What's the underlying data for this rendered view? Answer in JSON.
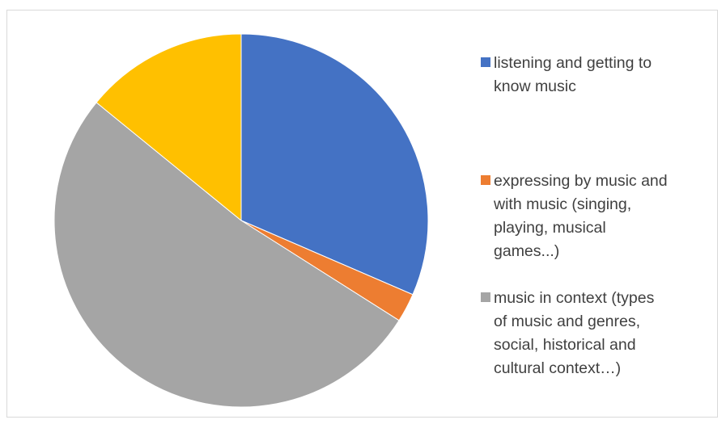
{
  "chart_data": {
    "type": "pie",
    "title": "",
    "legend_position": "right",
    "slices": [
      {
        "label": "listening and getting to\nknow music",
        "value": 31.5,
        "color": "#4472C4"
      },
      {
        "label": "expressing by music and\nwith music (singing,\nplaying, musical\ngames...)",
        "value": 2.5,
        "color": "#ED7D31"
      },
      {
        "label": "music in context (types\nof music and genres,\nsocial, historical and\ncultural context…)",
        "value": 51.9,
        "color": "#A5A5A5"
      },
      {
        "label": "",
        "value": 14.1,
        "color": "#FFC000"
      }
    ]
  }
}
